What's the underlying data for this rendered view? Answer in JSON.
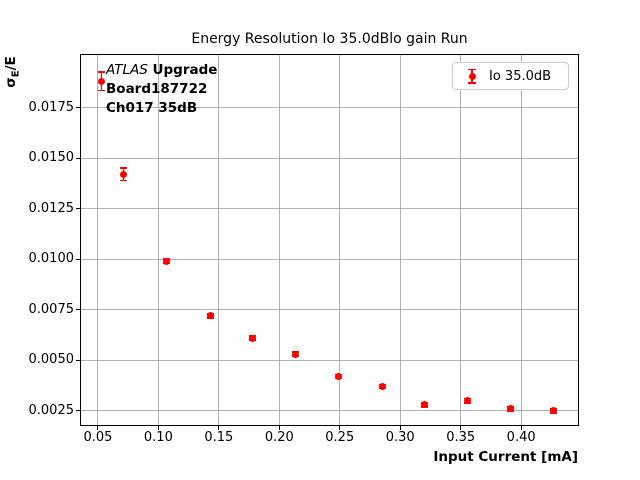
{
  "colors": {
    "marker": "#ff0000",
    "grid": "#b0b0b0",
    "spine": "#000000",
    "legend_border": "#cccccc",
    "text": "#000000",
    "background": "#ffffff"
  },
  "chart_data": {
    "type": "scatter",
    "title": "Energy Resolution Io 35.0dBlo gain Run",
    "xlabel": "Input Current [mA]",
    "ylabel": "σE/E",
    "ylabel_parts": {
      "sigma": "σ",
      "sub": "E",
      "rest": "/E"
    },
    "xlim": [
      0.036,
      0.447
    ],
    "ylim": [
      0.0018,
      0.0201
    ],
    "grid": true,
    "legend": {
      "label": "Io 35.0dB",
      "position": "upper right"
    },
    "annotation": {
      "line1_italic": "ATLAS",
      "line1_bold": " Upgrade",
      "line2": "Board187722",
      "line3": "Ch017 35dB"
    },
    "xticks": [
      {
        "value": 0.05,
        "label": "0.05"
      },
      {
        "value": 0.1,
        "label": "0.10"
      },
      {
        "value": 0.15,
        "label": "0.15"
      },
      {
        "value": 0.2,
        "label": "0.20"
      },
      {
        "value": 0.25,
        "label": "0.25"
      },
      {
        "value": 0.3,
        "label": "0.30"
      },
      {
        "value": 0.35,
        "label": "0.35"
      },
      {
        "value": 0.4,
        "label": "0.40"
      }
    ],
    "yticks": [
      {
        "value": 0.0025,
        "label": "0.0025"
      },
      {
        "value": 0.005,
        "label": "0.0050"
      },
      {
        "value": 0.0075,
        "label": "0.0075"
      },
      {
        "value": 0.01,
        "label": "0.0100"
      },
      {
        "value": 0.0125,
        "label": "0.0125"
      },
      {
        "value": 0.015,
        "label": "0.0150"
      },
      {
        "value": 0.0175,
        "label": "0.0175"
      }
    ],
    "series": [
      {
        "name": "Io 35.0dB",
        "marker": "o",
        "color": "#ff0000",
        "x": [
          0.053,
          0.071,
          0.107,
          0.143,
          0.178,
          0.213,
          0.249,
          0.285,
          0.32,
          0.356,
          0.391,
          0.427
        ],
        "y": [
          0.0188,
          0.0142,
          0.0099,
          0.0072,
          0.0061,
          0.0053,
          0.0042,
          0.0037,
          0.0028,
          0.003,
          0.0026,
          0.0025
        ],
        "yerr": [
          0.00045,
          0.0003,
          0.0001,
          0.0001,
          0.0001,
          0.0001,
          0.0001,
          0.0001,
          0.0001,
          0.0001,
          0.0001,
          0.0001
        ]
      }
    ]
  }
}
